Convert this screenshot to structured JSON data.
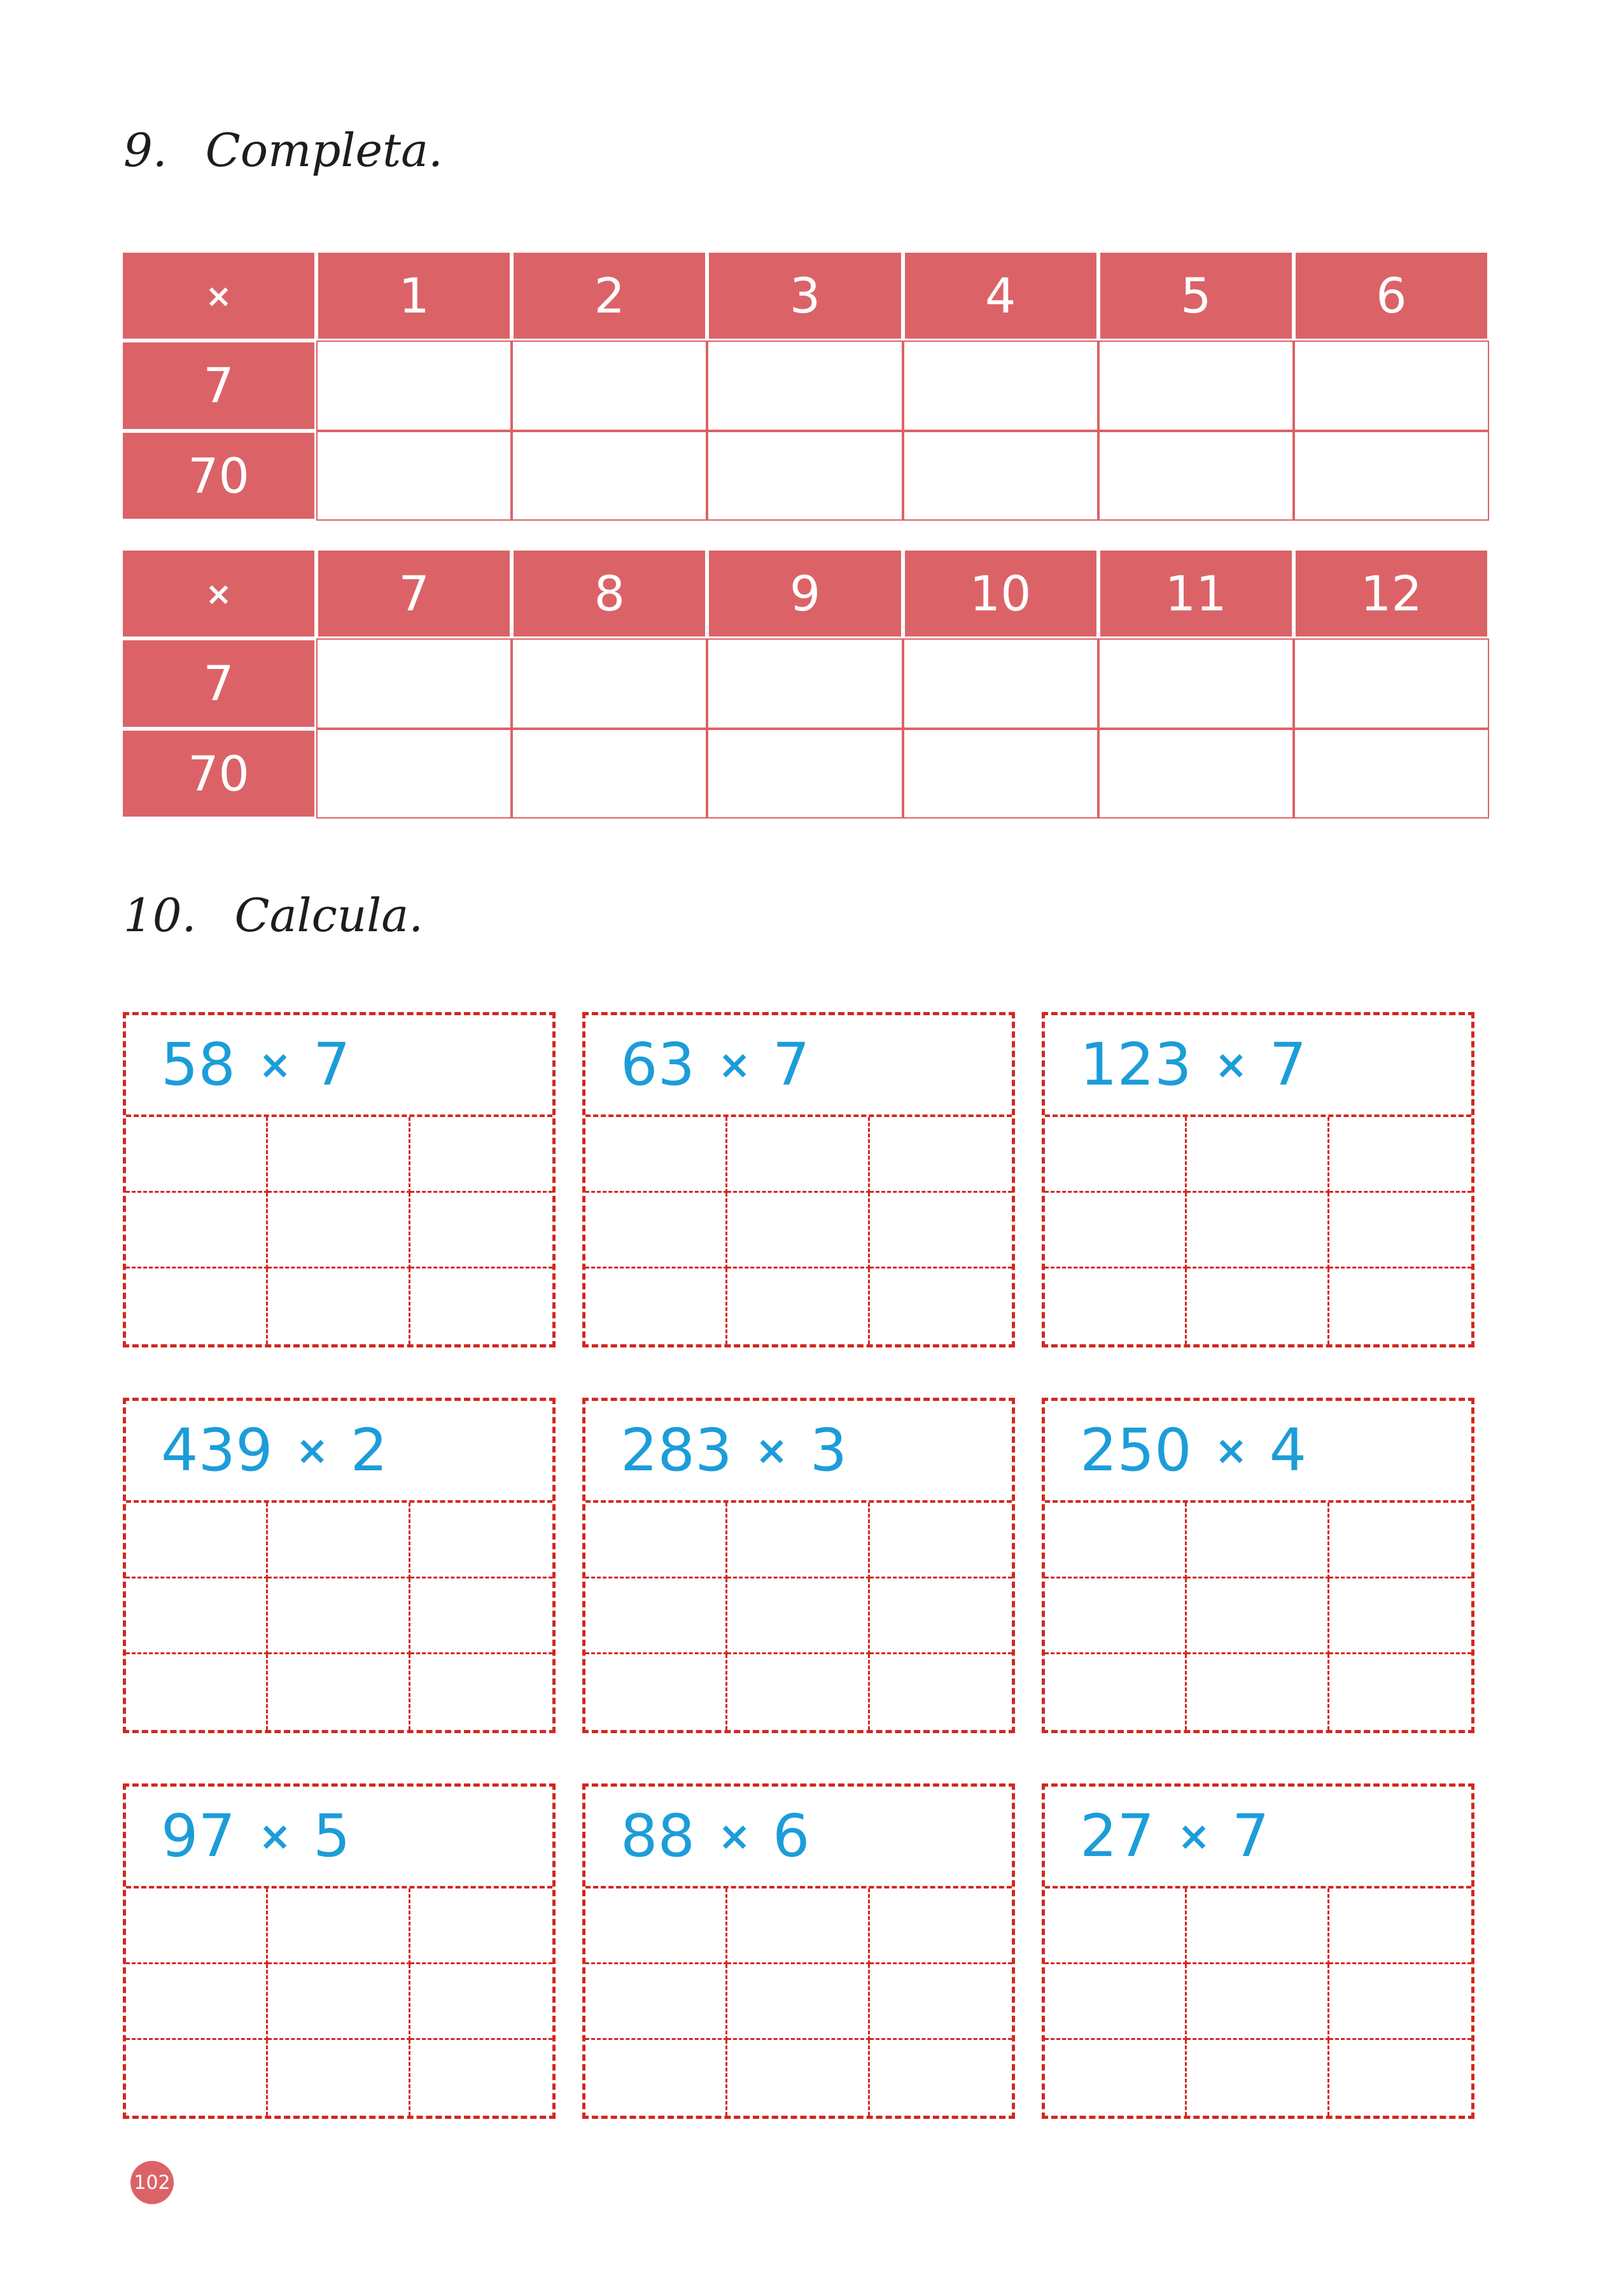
{
  "page": {
    "number": "102"
  },
  "colors": {
    "table_fill": "#db6368",
    "dashed_border": "#d3271f",
    "problem_text": "#1c9dd9",
    "title_text": "#1d1d1b"
  },
  "exercise9": {
    "number": "9.",
    "title": "Completa.",
    "tables": [
      {
        "operator": "×",
        "columns": [
          "1",
          "2",
          "3",
          "4",
          "5",
          "6"
        ],
        "rows": [
          "7",
          "70"
        ]
      },
      {
        "operator": "×",
        "columns": [
          "7",
          "8",
          "9",
          "10",
          "11",
          "12"
        ],
        "rows": [
          "7",
          "70"
        ]
      }
    ]
  },
  "exercise10": {
    "number": "10.",
    "title": "Calcula.",
    "operator": "×",
    "problems": [
      {
        "a": "58",
        "b": "7"
      },
      {
        "a": "63",
        "b": "7"
      },
      {
        "a": "123",
        "b": "7"
      },
      {
        "a": "439",
        "b": "2"
      },
      {
        "a": "283",
        "b": "3"
      },
      {
        "a": "250",
        "b": "4"
      },
      {
        "a": "97",
        "b": "5"
      },
      {
        "a": "88",
        "b": "6"
      },
      {
        "a": "27",
        "b": "7"
      }
    ]
  }
}
